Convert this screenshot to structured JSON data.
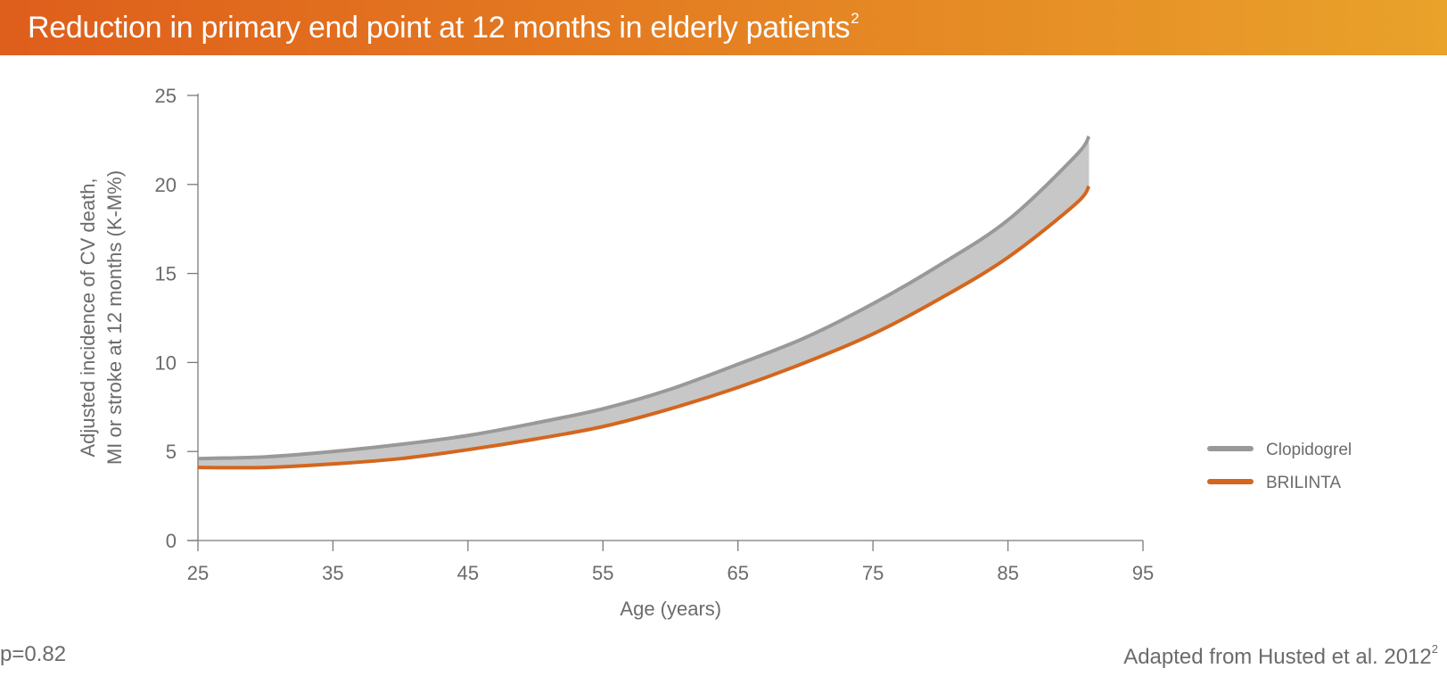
{
  "banner": {
    "title": "Reduction in primary end point at 12 months in elderly patients",
    "superscript": "2"
  },
  "footer": {
    "p_value": "p=0.82",
    "source": "Adapted from Husted et al. 2012",
    "source_superscript": "2"
  },
  "chart_data": {
    "type": "line",
    "title": "Reduction in primary end point at 12 months in elderly patients",
    "xlabel": "Age (years)",
    "ylabel_lines": [
      "Adjusted incidence of CV death,",
      "MI or stroke at 12 months (K-M%)"
    ],
    "xlim": [
      25,
      95
    ],
    "ylim": [
      0,
      25
    ],
    "x_ticks": [
      25,
      35,
      45,
      55,
      65,
      75,
      85,
      95
    ],
    "y_ticks": [
      0,
      5,
      10,
      15,
      20,
      25
    ],
    "grid": false,
    "legend_position": "right",
    "shaded_between_series": true,
    "colors": {
      "fill": "#c7c7c7",
      "axis": "#7a7a7a"
    },
    "series": [
      {
        "name": "Clopidogrel",
        "color": "#999999",
        "x": [
          25,
          30,
          35,
          40,
          45,
          50,
          55,
          60,
          65,
          70,
          75,
          80,
          85,
          90,
          91
        ],
        "y": [
          4.6,
          4.7,
          5.0,
          5.4,
          5.9,
          6.6,
          7.4,
          8.5,
          9.9,
          11.4,
          13.3,
          15.5,
          18.0,
          21.6,
          22.7
        ]
      },
      {
        "name": "BRILINTA",
        "color": "#d4661e",
        "x": [
          25,
          30,
          35,
          40,
          45,
          50,
          55,
          60,
          65,
          70,
          75,
          80,
          85,
          90,
          91
        ],
        "y": [
          4.1,
          4.1,
          4.3,
          4.6,
          5.1,
          5.7,
          6.4,
          7.4,
          8.6,
          10.0,
          11.6,
          13.6,
          15.9,
          18.9,
          19.9
        ]
      }
    ]
  }
}
